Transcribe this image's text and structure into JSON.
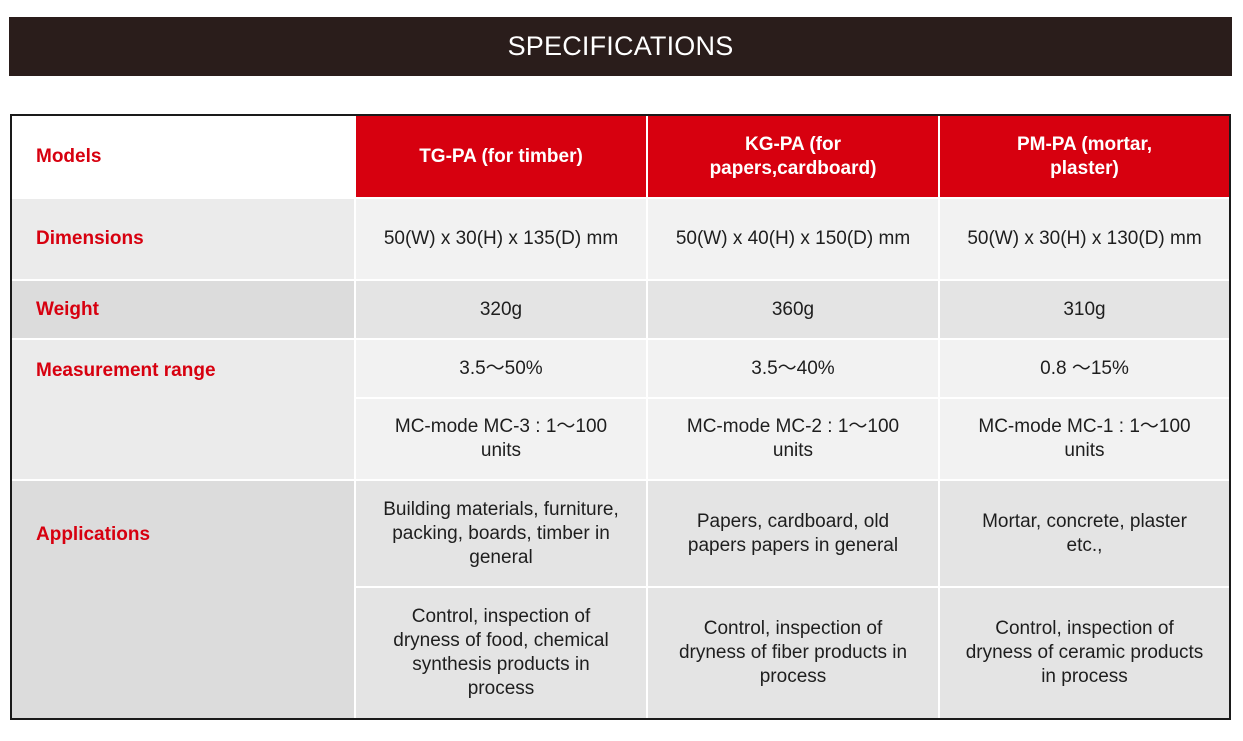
{
  "banner": {
    "title": "SPECIFICATIONS"
  },
  "spec_table": {
    "header": {
      "label": "Models",
      "models": [
        "TG-PA (for timber)",
        "KG-PA (for papers,cardboard)",
        "PM-PA (mortar, plaster)"
      ]
    },
    "dimensions": {
      "label": "Dimensions",
      "values": [
        "50(W) x 30(H) x 135(D) mm",
        "50(W) x 40(H) x 150(D) mm",
        "50(W) x 30(H) x 130(D) mm"
      ]
    },
    "weight": {
      "label": "Weight",
      "values": [
        "320g",
        "360g",
        "310g"
      ]
    },
    "measurement_range": {
      "label": "Measurement range",
      "range_values": [
        "3.5～50%",
        "3.5～40%",
        "0.8 ～15%"
      ],
      "mode_values": [
        "MC-mode MC-3 : 1～100 units",
        "MC-mode MC-2 : 1～100 units",
        "MC-mode MC-1 : 1～100 units"
      ]
    },
    "applications": {
      "label": "Applications",
      "general_values": [
        "Building materials, furniture, packing, boards, timber in general",
        "Papers, cardboard, old papers papers in general",
        "Mortar, concrete, plaster etc.,"
      ],
      "process_values": [
        "Control, inspection of dryness of food, chemical synthesis products in process",
        "Control, inspection of dryness of fiber products in process",
        "Control, inspection of dryness of ceramic products in process"
      ]
    }
  }
}
